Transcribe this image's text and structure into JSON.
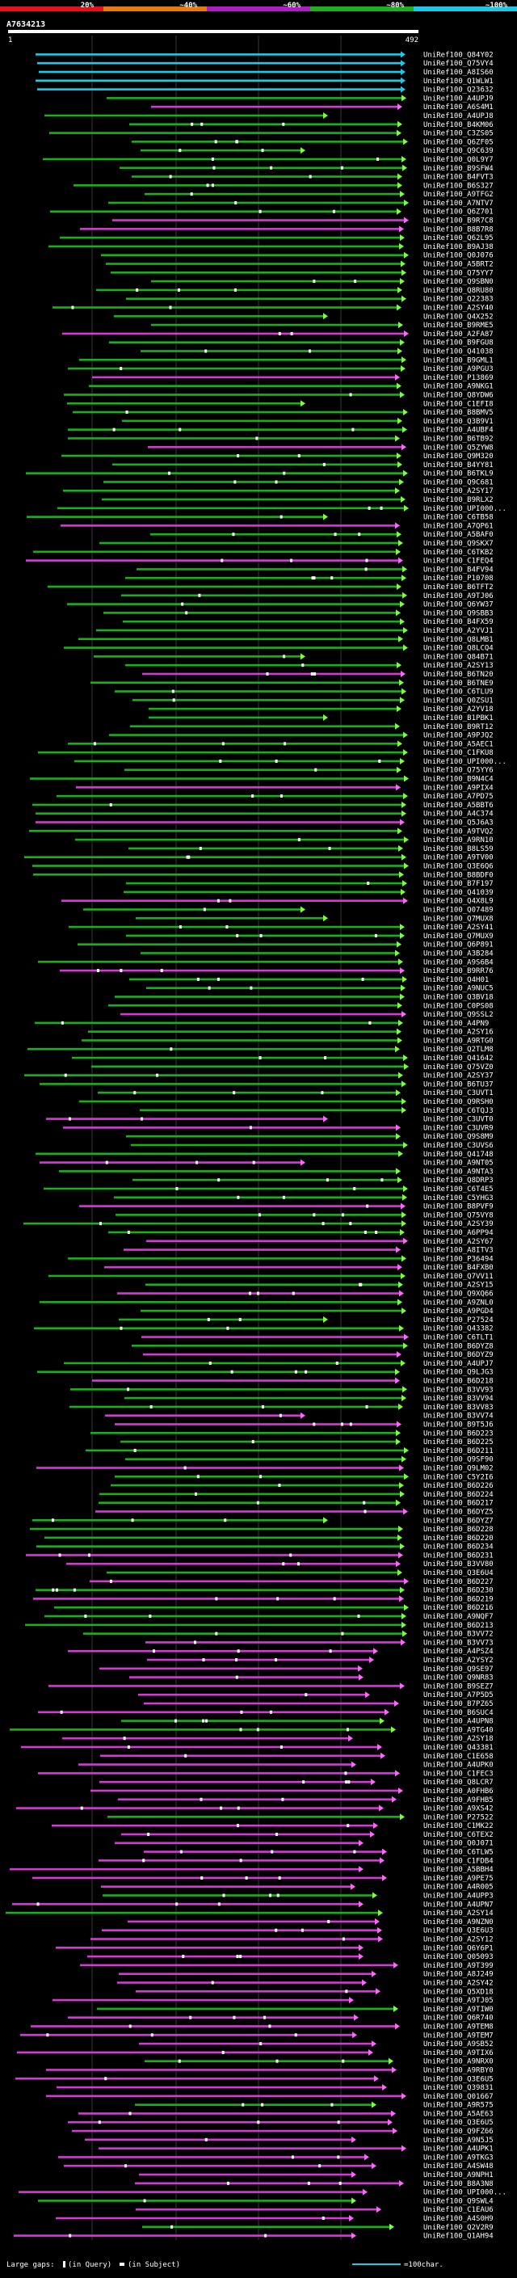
{
  "legend": {
    "ticks": [
      "20%",
      "~40%",
      "~60%",
      "~80%",
      "~100%"
    ],
    "colors": [
      "#e8101c",
      "#e87a10",
      "#b21cc8",
      "#1cb21c",
      "#1cc8e8"
    ]
  },
  "query": {
    "name": "A7634213",
    "start": "1",
    "end": "492"
  },
  "footer": {
    "large_gaps": "Large gaps:",
    "in_query": "(in Query)",
    "in_subject": "(in Subject)",
    "scale": "=100char."
  },
  "palette": {
    "cyan": "#1ccbe8",
    "green": "#19b11b",
    "magenta": "#d53ad5",
    "green_arrow": "#7cff3a",
    "magenta_arrow": "#ff66ff",
    "grid": "#3a3a3a"
  },
  "hits": [
    "UniRef100_Q84Y02",
    "UniRef100_Q75VY4",
    "UniRef100_A8IS60",
    "UniRef100_Q1WLW1",
    "UniRef100_Q23632",
    "UniRef100_A4UPJ9",
    "UniRef100_A6S4M1",
    "UniRef100_A4UPJ8",
    "UniRef100_B4KM06",
    "UniRef100_C3ZS05",
    "UniRef100_Q6ZF05",
    "UniRef100_Q9C639",
    "UniRef100_Q0L9Y7",
    "UniRef100_B9SFW4",
    "UniRef100_B4FVT3",
    "UniRef100_B6S327",
    "UniRef100_A9TFG2",
    "UniRef100_A7NTV7",
    "UniRef100_Q6Z701",
    "UniRef100_B9R7C8",
    "UniRef100_B8B7R8",
    "UniRef100_Q62L95",
    "UniRef100_B9AJ38",
    "UniRef100_Q0J076",
    "UniRef100_A5BRT2",
    "UniRef100_Q75YY7",
    "UniRef100_Q9SBN0",
    "UniRef100_Q8RU80",
    "UniRef100_Q22383",
    "UniRef100_A2SY40",
    "UniRef100_Q4X252",
    "UniRef100_B9RME5",
    "UniRef100_A2FA87",
    "UniRef100_B9FGU8",
    "UniRef100_Q41038",
    "UniRef100_B9GML1",
    "UniRef100_A9PGU3",
    "UniRef100_P13869",
    "UniRef100_A9NKG1",
    "UniRef100_Q8YDW6",
    "UniRef100_C1EFI8",
    "UniRef100_B8BMV5",
    "UniRef100_Q3B9V1",
    "UniRef100_A4UBF4",
    "UniRef100_B6TB92",
    "UniRef100_Q5ZYW8",
    "UniRef100_Q9M320",
    "UniRef100_B4YY81",
    "UniRef100_B6TKL9",
    "UniRef100_Q9C681",
    "UniRef100_A2SY17",
    "UniRef100_B9RLX2",
    "UniRef100_UPI000...",
    "UniRef100_C6TB58",
    "UniRef100_A7QP61",
    "UniRef100_A5BAF0",
    "UniRef100_Q9SKX7",
    "UniRef100_C6TKB2",
    "UniRef100_C1FEQ4",
    "UniRef100_B4FV94",
    "UniRef100_P10708",
    "UniRef100_B6TFT2",
    "UniRef100_A9TJ06",
    "UniRef100_Q6YW37",
    "UniRef100_Q9SBB3",
    "UniRef100_B4FX59",
    "UniRef100_A2YVJ1",
    "UniRef100_Q8LMB1",
    "UniRef100_Q8LCQ4",
    "UniRef100_Q84B71",
    "UniRef100_A2SY13",
    "UniRef100_B6TN20",
    "UniRef100_B6TNE9",
    "UniRef100_C6TLU9",
    "UniRef100_Q0ZSU1",
    "UniRef100_A2YV18",
    "UniRef100_B1PBK1",
    "UniRef100_B9RT12",
    "UniRef100_A9PJQ2",
    "UniRef100_A5AEC1",
    "UniRef100_C1FKU8",
    "UniRef100_UPI000...",
    "UniRef100_Q75YY6",
    "UniRef100_B9N4C4",
    "UniRef100_A9PIX4",
    "UniRef100_A7PD75",
    "UniRef100_A5BBT6",
    "UniRef100_A4C374",
    "UniRef100_Q5J6A3",
    "UniRef100_A9TVQ2",
    "UniRef100_A9RN10",
    "UniRef100_B8LS59",
    "UniRef100_A9TV00",
    "UniRef100_Q3E6Q6",
    "UniRef100_B8BDF0",
    "UniRef100_B7F197",
    "UniRef100_Q41039",
    "UniRef100_Q4X8L9",
    "UniRef100_Q07489",
    "UniRef100_Q7MUX8",
    "UniRef100_A2SY41",
    "UniRef100_Q7MUX9",
    "UniRef100_Q6P891",
    "UniRef100_A3B284",
    "UniRef100_A9S6B4",
    "UniRef100_B9RR76",
    "UniRef100_Q4H01",
    "UniRef100_A9NUC5",
    "UniRef100_Q3BV18",
    "UniRef100_C0PS08",
    "UniRef100_Q9SSL2",
    "UniRef100_A4PN9",
    "UniRef100_A2SY16",
    "UniRef100_A9RTG0",
    "UniRef100_Q2TLM8",
    "UniRef100_Q41642",
    "UniRef100_Q75VZ0",
    "UniRef100_A2SY37",
    "UniRef100_B6TU37",
    "UniRef100_C3UVT1",
    "UniRef100_Q9RSH0",
    "UniRef100_C6TQJ3",
    "UniRef100_C3UVT0",
    "UniRef100_C3UVR9",
    "UniRef100_Q9S8M9",
    "UniRef100_C3UVS6",
    "UniRef100_Q41748",
    "UniRef100_A9NT05",
    "UniRef100_A9NTA3",
    "UniRef100_Q8DRP3",
    "UniRef100_C6T4E5",
    "UniRef100_C5YHG3",
    "UniRef100_B8PVF9",
    "UniRef100_Q75VY8",
    "UniRef100_A2SY39",
    "UniRef100_A6PP94",
    "UniRef100_A2SY67",
    "UniRef100_A8ITV3",
    "UniRef100_P36494",
    "UniRef100_B4FXB0",
    "UniRef100_Q7VV11",
    "UniRef100_A2SY15",
    "UniRef100_Q9XQ66",
    "UniRef100_A9ZNL0",
    "UniRef100_A9PGD4",
    "UniRef100_P27524",
    "UniRef100_Q43382",
    "UniRef100_C6TLT1",
    "UniRef100_B6DYZ8",
    "UniRef100_B6DYZ9",
    "UniRef100_A4UPJ7",
    "UniRef100_Q9LJG3",
    "UniRef100_B6D218",
    "UniRef100_B3VV93",
    "UniRef100_B3VV94",
    "UniRef100_B3VV83",
    "UniRef100_B3VV74",
    "UniRef100_B9T5J6",
    "UniRef100_B6D223",
    "UniRef100_B6D225",
    "UniRef100_B6D211",
    "UniRef100_Q9SF90",
    "UniRef100_Q9LM02",
    "UniRef100_C5Y2I6",
    "UniRef100_B6D226",
    "UniRef100_B6D224",
    "UniRef100_B6D217",
    "UniRef100_B6DYZ5",
    "UniRef100_B6DYZ7",
    "UniRef100_B6D228",
    "UniRef100_B6D220",
    "UniRef100_B6D234",
    "UniRef100_B6D231",
    "UniRef100_B3VV80",
    "UniRef100_Q3E6U4",
    "UniRef100_B6D227",
    "UniRef100_B6D230",
    "UniRef100_B6D219",
    "UniRef100_B6D216",
    "UniRef100_A9NQF7",
    "UniRef100_B6D213",
    "UniRef100_B3VV72",
    "UniRef100_B3VV73",
    "UniRef100_A4PSZ4",
    "UniRef100_A2YSY2",
    "UniRef100_Q9SE97",
    "UniRef100_Q9NR83",
    "UniRef100_B9SEZ7",
    "UniRef100_A7P5D5",
    "UniRef100_B7PZ65",
    "UniRef100_B6SUC4",
    "UniRef100_A4UPN8",
    "UniRef100_A9TG40",
    "UniRef100_A2SY18",
    "UniRef100_Q43381",
    "UniRef100_C1E658",
    "UniRef100_A4UPK0",
    "UniRef100_C1FEC3",
    "UniRef100_Q8LCR7",
    "UniRef100_A0FHB6",
    "UniRef100_A9FHB5",
    "UniRef100_A9XS42",
    "UniRef100_P27522",
    "UniRef100_C1MK22",
    "UniRef100_C6TEX2",
    "UniRef100_Q0J071",
    "UniRef100_C6TLW5",
    "UniRef100_C1FDB4",
    "UniRef100_A5BBH4",
    "UniRef100_A9PE75",
    "UniRef100_A4R005",
    "UniRef100_A4UPP3",
    "UniRef100_A4UPN7",
    "UniRef100_A2SY14",
    "UniRef100_A9NZN0",
    "UniRef100_Q3E6U3",
    "UniRef100_A2SY12",
    "UniRef100_Q6Y6P1",
    "UniRef100_Q05093",
    "UniRef100_A9T399",
    "UniRef100_A8J249",
    "UniRef100_A2SY42",
    "UniRef100_Q5XD18",
    "UniRef100_A9TJ05",
    "UniRef100_A9TIW0",
    "UniRef100_Q6R740",
    "UniRef100_A9TEM8",
    "UniRef100_A9TEM7",
    "UniRef100_A9SB52",
    "UniRef100_A9TIX6",
    "UniRef100_A9NRX0",
    "UniRef100_A9RBY0",
    "UniRef100_Q3E6U5",
    "UniRef100_Q39831",
    "UniRef100_Q01667",
    "UniRef100_A9R575",
    "UniRef100_A5AE63",
    "UniRef100_Q3E6U5",
    "UniRef100_Q9FZ66",
    "UniRef100_A9N5J5",
    "UniRef100_A4UPK1",
    "UniRef100_A9TKG3",
    "UniRef100_A4SW48",
    "UniRef100_A9NPH1",
    "UniRef100_B8A3N8",
    "UniRef100_UPI000...",
    "UniRef100_Q9SWL4",
    "UniRef100_C1EAU6",
    "UniRef100_A4S0H9",
    "UniRef100_Q2V2R9",
    "UniRef100_Q1AH94"
  ]
}
